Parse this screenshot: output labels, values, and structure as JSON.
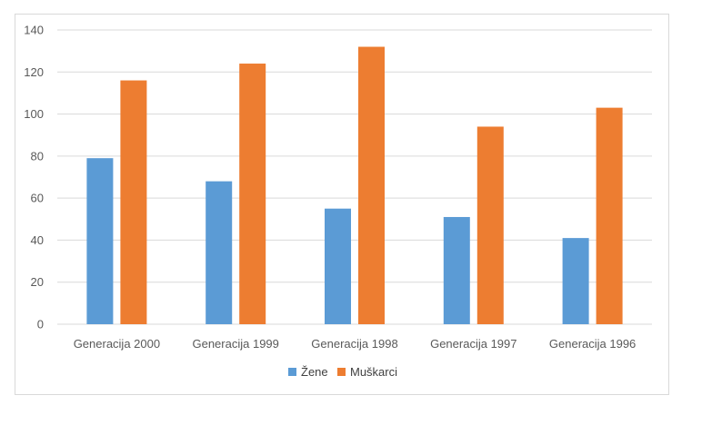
{
  "chart_data": {
    "type": "bar",
    "title": "",
    "xlabel": "",
    "ylabel": "",
    "categories": [
      "Generacija 2000",
      "Generacija 1999",
      "Generacija 1998",
      "Generacija 1997",
      "Generacija 1996"
    ],
    "series": [
      {
        "name": "Žene",
        "color": "#5b9bd5",
        "values": [
          79,
          68,
          55,
          51,
          41
        ]
      },
      {
        "name": "Muškarci",
        "color": "#ed7d31",
        "values": [
          116,
          124,
          132,
          94,
          103
        ]
      }
    ],
    "ylim": [
      0,
      140
    ],
    "yticks": [
      "0",
      "20",
      "40",
      "60",
      "80",
      "100",
      "120",
      "140"
    ],
    "grid": true,
    "legend_position": "bottom"
  }
}
